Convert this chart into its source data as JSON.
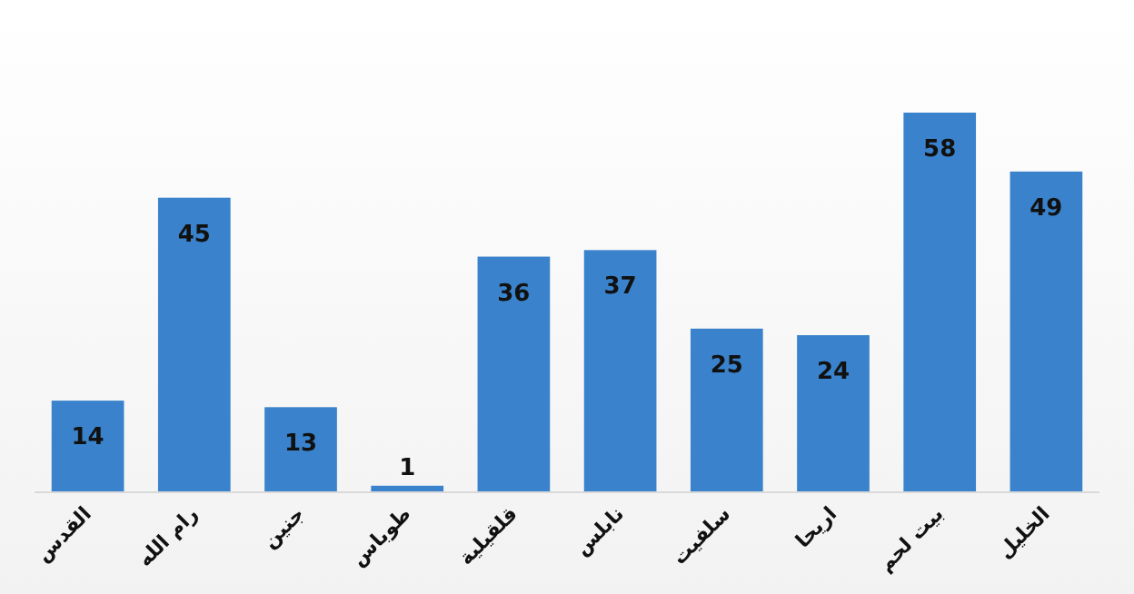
{
  "chart_data": {
    "type": "bar",
    "categories": [
      "القدس",
      "رام الله",
      "جنين",
      "طوباس",
      "قلقيلية",
      "نابلس",
      "سلفيت",
      "اريحا",
      "بيت لحم",
      "الخليل"
    ],
    "values": [
      14,
      45,
      13,
      1,
      36,
      37,
      25,
      24,
      58,
      49
    ],
    "color": "#3a83cc",
    "data_labels": true
  }
}
